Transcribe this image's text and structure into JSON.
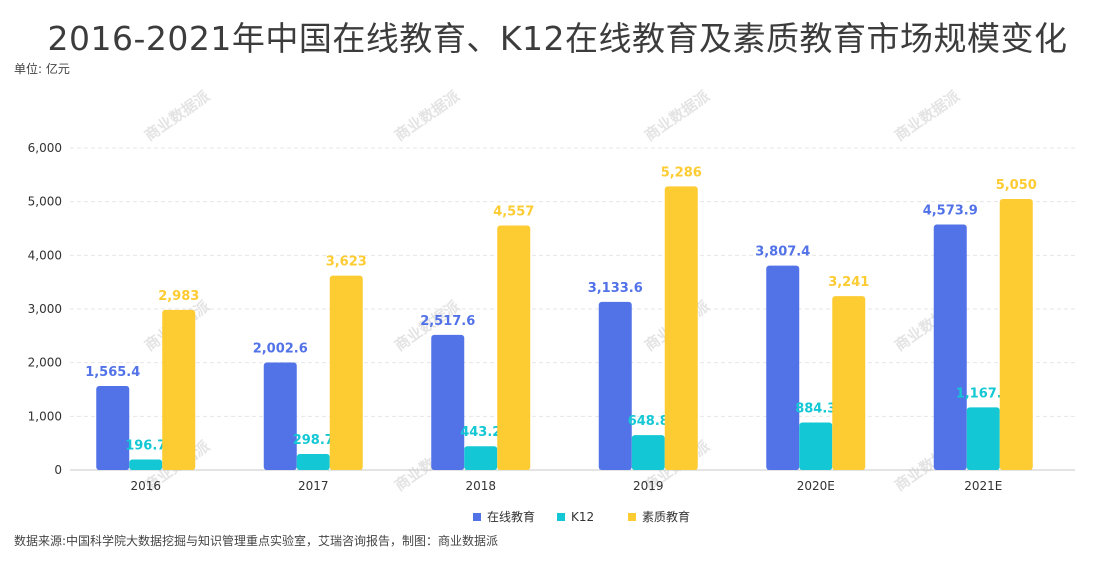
{
  "title": "2016-2021年中国在线教育、K12在线教育及素质教育市场规模变化",
  "unit_label": "单位: 亿元",
  "source_text": "数据来源:中国科学院大数据挖掘与知识管理重点实验室，艾瑞咨询报告，制图：商业数据派",
  "watermark_text": "商业数据派",
  "colors": {
    "online": "#5272e8",
    "k12": "#13c8d4",
    "quality": "#fdcb32",
    "grid": "#e6e6e6",
    "axis": "#c8c8c8"
  },
  "chart_data": {
    "type": "bar",
    "title": "2016-2021年中国在线教育、K12在线教育及素质教育市场规模变化",
    "categories": [
      "2016",
      "2017",
      "2018",
      "2019",
      "2020E",
      "2021E"
    ],
    "series": [
      {
        "name": "在线教育",
        "values": [
          1565.4,
          2002.6,
          2517.6,
          3133.6,
          3807.4,
          4573.9
        ],
        "labels": [
          "1,565.4",
          "2,002.6",
          "2,517.6",
          "3,133.6",
          "3,807.4",
          "4,573.9"
        ],
        "color": "#5272e8"
      },
      {
        "name": "K12",
        "values": [
          196.7,
          298.7,
          443.2,
          648.8,
          884.3,
          1167.4
        ],
        "labels": [
          "196.7",
          "298.7",
          "443.2",
          "648.8",
          "884.3",
          "1,167.4"
        ],
        "color": "#13c8d4"
      },
      {
        "name": "素质教育",
        "values": [
          2983,
          3623,
          4557,
          5286,
          3241,
          5050
        ],
        "labels": [
          "2,983",
          "3,623",
          "4,557",
          "5,286",
          "3,241",
          "5,050"
        ],
        "color": "#fdcb32"
      }
    ],
    "yticks": [
      "0",
      "1,000",
      "2,000",
      "3,000",
      "4,000",
      "5,000",
      "6,000"
    ],
    "ylim": [
      0,
      6000
    ],
    "xlabel": "",
    "ylabel": "单位: 亿元",
    "legend_position": "bottom-center",
    "grid": true
  }
}
